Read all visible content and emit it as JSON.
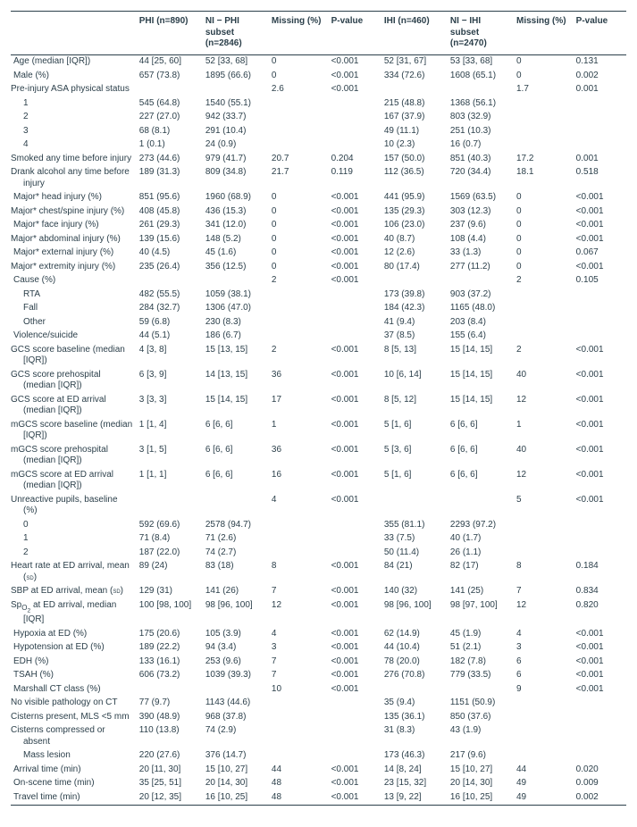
{
  "columns": [
    "",
    "PHI (n=890)",
    "NI − PHI subset (n=2846)",
    "Missing (%)",
    "P-value",
    "IHI (n=460)",
    "NI − IHI subset (n=2470)",
    "Missing (%)",
    "P-value"
  ],
  "rows": [
    {
      "label": "Age (median [IQR])",
      "c": [
        "44 [25, 60]",
        "52 [33, 68]",
        "0",
        "<0.001",
        "52 [31, 67]",
        "53 [33, 68]",
        "0",
        "0.131"
      ]
    },
    {
      "label": "Male (%)",
      "c": [
        "657 (73.8)",
        "1895 (66.6)",
        "0",
        "<0.001",
        "334 (72.6)",
        "1608 (65.1)",
        "0",
        "0.002"
      ]
    },
    {
      "label": "Pre-injury ASA physical status",
      "hang": true,
      "c": [
        "",
        "",
        "2.6",
        "<0.001",
        "",
        "",
        "1.7",
        "0.001"
      ]
    },
    {
      "label": "1",
      "indent": 1,
      "c": [
        "545 (64.8)",
        "1540 (55.1)",
        "",
        "",
        "215 (48.8)",
        "1368 (56.1)",
        "",
        ""
      ]
    },
    {
      "label": "2",
      "indent": 1,
      "c": [
        "227 (27.0)",
        "942 (33.7)",
        "",
        "",
        "167 (37.9)",
        "803 (32.9)",
        "",
        ""
      ]
    },
    {
      "label": "3",
      "indent": 1,
      "c": [
        "68 (8.1)",
        "291 (10.4)",
        "",
        "",
        "49 (11.1)",
        "251 (10.3)",
        "",
        ""
      ]
    },
    {
      "label": "4",
      "indent": 1,
      "c": [
        "1 (0.1)",
        "24 (0.9)",
        "",
        "",
        "10 (2.3)",
        "16 (0.7)",
        "",
        ""
      ]
    },
    {
      "label": "Smoked any time before injury",
      "hang": true,
      "c": [
        "273 (44.6)",
        "979 (41.7)",
        "20.7",
        "0.204",
        "157 (50.0)",
        "851 (40.3)",
        "17.2",
        "0.001"
      ]
    },
    {
      "label": "Drank alcohol any time before injury",
      "hang": true,
      "c": [
        "189 (31.3)",
        "809 (34.8)",
        "21.7",
        "0.119",
        "112 (36.5)",
        "720 (34.4)",
        "18.1",
        "0.518"
      ]
    },
    {
      "label": "Major* head injury (%)",
      "c": [
        "851 (95.6)",
        "1960 (68.9)",
        "0",
        "<0.001",
        "441 (95.9)",
        "1569 (63.5)",
        "0",
        "<0.001"
      ]
    },
    {
      "label": "Major* chest/spine injury (%)",
      "hang": true,
      "c": [
        "408 (45.8)",
        "436 (15.3)",
        "0",
        "<0.001",
        "135 (29.3)",
        "303 (12.3)",
        "0",
        "<0.001"
      ]
    },
    {
      "label": "Major* face injury (%)",
      "c": [
        "261 (29.3)",
        "341 (12.0)",
        "0",
        "<0.001",
        "106 (23.0)",
        "237 (9.6)",
        "0",
        "<0.001"
      ]
    },
    {
      "label": "Major* abdominal injury (%)",
      "hang": true,
      "c": [
        "139 (15.6)",
        "148 (5.2)",
        "0",
        "<0.001",
        "40 (8.7)",
        "108 (4.4)",
        "0",
        "<0.001"
      ]
    },
    {
      "label": "Major* external injury (%)",
      "c": [
        "40 (4.5)",
        "45 (1.6)",
        "0",
        "<0.001",
        "12 (2.6)",
        "33 (1.3)",
        "0",
        "0.067"
      ]
    },
    {
      "label": "Major* extremity injury (%)",
      "hang": true,
      "c": [
        "235 (26.4)",
        "356 (12.5)",
        "0",
        "<0.001",
        "80 (17.4)",
        "277 (11.2)",
        "0",
        "<0.001"
      ]
    },
    {
      "label": "Cause (%)",
      "c": [
        "",
        "",
        "2",
        "<0.001",
        "",
        "",
        "2",
        "0.105"
      ]
    },
    {
      "label": "RTA",
      "indent": 1,
      "c": [
        "482 (55.5)",
        "1059 (38.1)",
        "",
        "",
        "173 (39.8)",
        "903 (37.2)",
        "",
        ""
      ]
    },
    {
      "label": "Fall",
      "indent": 1,
      "c": [
        "284 (32.7)",
        "1306 (47.0)",
        "",
        "",
        "184 (42.3)",
        "1165 (48.0)",
        "",
        ""
      ]
    },
    {
      "label": "Other",
      "indent": 1,
      "c": [
        "59 (6.8)",
        "230 (8.3)",
        "",
        "",
        "41 (9.4)",
        "203 (8.4)",
        "",
        ""
      ]
    },
    {
      "label": "Violence/suicide",
      "c": [
        "44 (5.1)",
        "186 (6.7)",
        "",
        "",
        "37 (8.5)",
        "155 (6.4)",
        "",
        ""
      ]
    },
    {
      "label": "GCS score baseline (median [IQR])",
      "hang": true,
      "c": [
        "4 [3, 8]",
        "15 [13, 15]",
        "2",
        "<0.001",
        "8 [5, 13]",
        "15 [14, 15]",
        "2",
        "<0.001"
      ]
    },
    {
      "label": "GCS score prehospital (median [IQR])",
      "hang": true,
      "c": [
        "6 [3, 9]",
        "14 [13, 15]",
        "36",
        "<0.001",
        "10 [6, 14]",
        "15 [14, 15]",
        "40",
        "<0.001"
      ]
    },
    {
      "label": "GCS score at ED arrival (median [IQR])",
      "hang": true,
      "c": [
        "3 [3, 3]",
        "15 [14, 15]",
        "17",
        "<0.001",
        "8 [5, 12]",
        "15 [14, 15]",
        "12",
        "<0.001"
      ]
    },
    {
      "label": "mGCS score baseline (median [IQR])",
      "hang": true,
      "c": [
        "1 [1, 4]",
        "6 [6, 6]",
        "1",
        "<0.001",
        "5 [1, 6]",
        "6 [6, 6]",
        "1",
        "<0.001"
      ]
    },
    {
      "label": "mGCS score prehospital (median [IQR])",
      "hang": true,
      "c": [
        "3 [1, 5]",
        "6 [6, 6]",
        "36",
        "<0.001",
        "5 [3, 6]",
        "6 [6, 6]",
        "40",
        "<0.001"
      ]
    },
    {
      "label": "mGCS score at ED arrival (median [IQR])",
      "hang": true,
      "c": [
        "1 [1, 1]",
        "6 [6, 6]",
        "16",
        "<0.001",
        "5 [1, 6]",
        "6 [6, 6]",
        "12",
        "<0.001"
      ]
    },
    {
      "label": "Unreactive pupils, baseline (%)",
      "hang": true,
      "c": [
        "",
        "",
        "4",
        "<0.001",
        "",
        "",
        "5",
        "<0.001"
      ]
    },
    {
      "label": "0",
      "indent": 1,
      "c": [
        "592 (69.6)",
        "2578 (94.7)",
        "",
        "",
        "355 (81.1)",
        "2293 (97.2)",
        "",
        ""
      ]
    },
    {
      "label": "1",
      "indent": 1,
      "c": [
        "71 (8.4)",
        "71 (2.6)",
        "",
        "",
        "33 (7.5)",
        "40 (1.7)",
        "",
        ""
      ]
    },
    {
      "label": "2",
      "indent": 1,
      "c": [
        "187 (22.0)",
        "74 (2.7)",
        "",
        "",
        "50 (11.4)",
        "26 (1.1)",
        "",
        ""
      ]
    },
    {
      "label": "Heart rate at ED arrival, mean (SD)",
      "hang": true,
      "sd": true,
      "c": [
        "89 (24)",
        "83 (18)",
        "8",
        "<0.001",
        "84 (21)",
        "82 (17)",
        "8",
        "0.184"
      ]
    },
    {
      "label": "SBP at ED arrival, mean (SD)",
      "hang": true,
      "sd": true,
      "c": [
        "129 (31)",
        "141 (26)",
        "7",
        "<0.001",
        "140 (32)",
        "141 (25)",
        "7",
        "0.834"
      ]
    },
    {
      "label": "SpO2 at ED arrival, median [IQR]",
      "hang": true,
      "spo2": true,
      "c": [
        "100 [98, 100]",
        "98 [96, 100]",
        "12",
        "<0.001",
        "98 [96, 100]",
        "98 [97, 100]",
        "12",
        "0.820"
      ]
    },
    {
      "label": "Hypoxia at ED (%)",
      "c": [
        "175 (20.6)",
        "105 (3.9)",
        "4",
        "<0.001",
        "62 (14.9)",
        "45 (1.9)",
        "4",
        "<0.001"
      ]
    },
    {
      "label": "Hypotension at ED (%)",
      "c": [
        "189 (22.2)",
        "94 (3.4)",
        "3",
        "<0.001",
        "44 (10.4)",
        "51 (2.1)",
        "3",
        "<0.001"
      ]
    },
    {
      "label": "EDH (%)",
      "c": [
        "133 (16.1)",
        "253 (9.6)",
        "7",
        "<0.001",
        "78 (20.0)",
        "182 (7.8)",
        "6",
        "<0.001"
      ]
    },
    {
      "label": "TSAH (%)",
      "c": [
        "606 (73.2)",
        "1039 (39.3)",
        "7",
        "<0.001",
        "276 (70.8)",
        "779 (33.5)",
        "6",
        "<0.001"
      ]
    },
    {
      "label": "Marshall CT class (%)",
      "c": [
        "",
        "",
        "10",
        "<0.001",
        "",
        "",
        "9",
        "<0.001"
      ]
    },
    {
      "label": "No visible pathology on CT",
      "indent": 1,
      "hang": true,
      "c": [
        "77 (9.7)",
        "1143 (44.6)",
        "",
        "",
        "35 (9.4)",
        "1151 (50.9)",
        "",
        ""
      ]
    },
    {
      "label": "Cisterns present, MLS <5 mm",
      "indent": 1,
      "hang": true,
      "c": [
        "390 (48.9)",
        "968 (37.8)",
        "",
        "",
        "135 (36.1)",
        "850 (37.6)",
        "",
        ""
      ]
    },
    {
      "label": "Cisterns compressed or absent",
      "indent": 1,
      "hang": true,
      "c": [
        "110 (13.8)",
        "74 (2.9)",
        "",
        "",
        "31 (8.3)",
        "43 (1.9)",
        "",
        ""
      ]
    },
    {
      "label": "Mass lesion",
      "indent": 1,
      "c": [
        "220 (27.6)",
        "376 (14.7)",
        "",
        "",
        "173 (46.3)",
        "217 (9.6)",
        "",
        ""
      ]
    },
    {
      "label": "Arrival time (min)",
      "c": [
        "20 [11, 30]",
        "15 [10, 27]",
        "44",
        "<0.001",
        "14 [8, 24]",
        "15 [10, 27]",
        "44",
        "0.020"
      ]
    },
    {
      "label": "On-scene time (min)",
      "c": [
        "35 [25, 51]",
        "20 [14, 30]",
        "48",
        "<0.001",
        "23 [15, 32]",
        "20 [14, 30]",
        "49",
        "0.009"
      ]
    },
    {
      "label": "Travel time (min)",
      "last": true,
      "c": [
        "20 [12, 35]",
        "16 [10, 25]",
        "48",
        "<0.001",
        "13 [9, 22]",
        "16 [10, 25]",
        "49",
        "0.002"
      ]
    }
  ]
}
